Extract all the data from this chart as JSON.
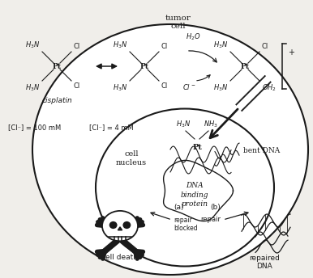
{
  "bg": "#f0eeea",
  "lc": "#1a1a1a",
  "fig_w": 3.86,
  "fig_h": 3.44,
  "dpi": 100,
  "tumor_cell": "tumor\ncell",
  "cell_nucleus": "cell\nnucleus",
  "cisplatin": "cisplatin",
  "cl_out": "[Cl⁻] = 100 mM",
  "cl_in": "[Cl⁻] = 4 mM",
  "bent_dna": "bent DNA",
  "dna_binding": "DNA\nbinding\nprotein",
  "cell_death": "cell death",
  "repair_blocked": "repair\nblocked",
  "repair_b": "repair",
  "repaired_dna": "repaired\nDNA"
}
